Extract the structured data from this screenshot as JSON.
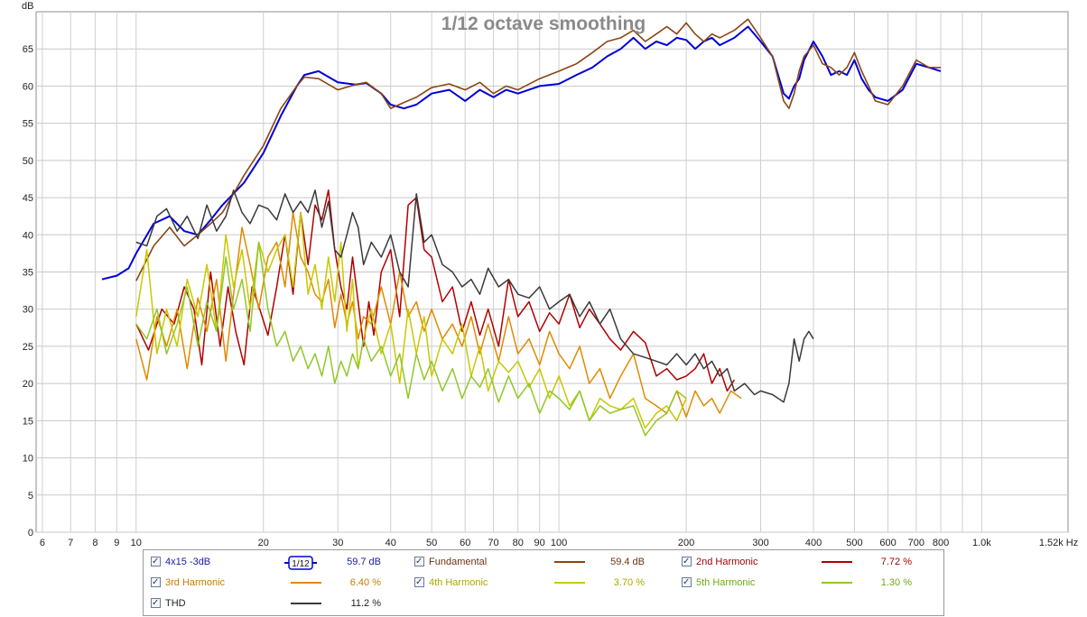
{
  "chart_data": {
    "type": "line",
    "title": "1/12 octave smoothing",
    "ylabel": "dB",
    "xlabel": "",
    "x_unit": "Hz",
    "x_scale": "log",
    "xlim": [
      5.8,
      1600
    ],
    "ylim": [
      0,
      70
    ],
    "grid": true,
    "y_ticks": [
      0,
      5,
      10,
      15,
      20,
      25,
      30,
      35,
      40,
      45,
      50,
      55,
      60,
      65
    ],
    "x_ticks": [
      {
        "v": 6,
        "l": "6"
      },
      {
        "v": 7,
        "l": "7"
      },
      {
        "v": 8,
        "l": "8"
      },
      {
        "v": 9,
        "l": "9"
      },
      {
        "v": 10,
        "l": "10"
      },
      {
        "v": 20,
        "l": "20"
      },
      {
        "v": 30,
        "l": "30"
      },
      {
        "v": 40,
        "l": "40"
      },
      {
        "v": 50,
        "l": "50"
      },
      {
        "v": 60,
        "l": "60"
      },
      {
        "v": 70,
        "l": "70"
      },
      {
        "v": 80,
        "l": "80"
      },
      {
        "v": 90,
        "l": "90"
      },
      {
        "v": 100,
        "l": "100"
      },
      {
        "v": 200,
        "l": "200"
      },
      {
        "v": 300,
        "l": "300"
      },
      {
        "v": 400,
        "l": "400"
      },
      {
        "v": 500,
        "l": "500"
      },
      {
        "v": 600,
        "l": "600"
      },
      {
        "v": 700,
        "l": "700"
      },
      {
        "v": 800,
        "l": "800"
      },
      {
        "v": 1000,
        "l": "1.0k"
      },
      {
        "v": 1520,
        "l": "1.52k Hz"
      }
    ],
    "series": [
      {
        "name": "4x15 -3dB",
        "color": "#0000d8",
        "width": 2,
        "x": [
          8.3,
          9,
          9.6,
          10,
          11,
          12,
          13,
          14,
          15,
          16,
          18,
          20,
          22,
          24,
          25,
          27,
          30,
          33,
          35,
          38,
          40,
          43,
          46,
          50,
          55,
          60,
          65,
          70,
          75,
          80,
          90,
          100,
          110,
          120,
          130,
          140,
          150,
          160,
          170,
          180,
          190,
          200,
          210,
          220,
          230,
          240,
          260,
          280,
          300,
          320,
          340,
          350,
          360,
          370,
          380,
          400,
          420,
          440,
          460,
          480,
          500,
          520,
          540,
          560,
          600,
          650,
          700,
          750,
          800
        ],
        "y": [
          34,
          34.5,
          35.5,
          37.5,
          41.5,
          42.5,
          40.5,
          40,
          42,
          44,
          47,
          51,
          56,
          60,
          61.5,
          62,
          60.5,
          60.2,
          60.4,
          59,
          57.5,
          57,
          57.5,
          59,
          59.5,
          58,
          59.5,
          58.5,
          59.5,
          59,
          60,
          60.3,
          61.5,
          62.5,
          64,
          65,
          66.5,
          65,
          66,
          65.5,
          66.5,
          66.2,
          65,
          66,
          66.5,
          65.5,
          66.5,
          68,
          66,
          64,
          59,
          58.3,
          60,
          61,
          63.5,
          66,
          64,
          61.5,
          62,
          61.5,
          63.5,
          61,
          59.5,
          58.5,
          58,
          59.5,
          63,
          62.5,
          62
        ]
      },
      {
        "name": "Fundamental",
        "color": "#8b4513",
        "width": 1.6,
        "x": [
          10,
          11,
          12,
          13,
          14,
          15,
          16,
          17,
          18,
          20,
          22,
          24,
          25,
          27,
          30,
          33,
          35,
          38,
          40,
          43,
          46,
          50,
          55,
          60,
          65,
          70,
          75,
          80,
          90,
          100,
          110,
          120,
          130,
          140,
          150,
          160,
          170,
          180,
          190,
          200,
          210,
          220,
          230,
          240,
          260,
          280,
          300,
          320,
          340,
          350,
          360,
          370,
          380,
          400,
          420,
          440,
          460,
          480,
          500,
          520,
          540,
          560,
          600,
          650,
          700,
          750,
          800
        ],
        "y": [
          33.8,
          38.5,
          41,
          38.5,
          40,
          41.5,
          43,
          45.5,
          48,
          52,
          57,
          60,
          61.2,
          61,
          59.5,
          60.2,
          60.5,
          59,
          57,
          57.8,
          58.5,
          59.8,
          60.3,
          59.5,
          60.5,
          59,
          60,
          59.5,
          61,
          62,
          63,
          64.5,
          66,
          66.5,
          67.5,
          66,
          67,
          68,
          67,
          68.5,
          67,
          66,
          67,
          66.5,
          67.5,
          69,
          66.5,
          64,
          58,
          57,
          59,
          62,
          64,
          65.5,
          63,
          62.5,
          61.5,
          62.5,
          64.5,
          62,
          60,
          58,
          57.5,
          60,
          63.5,
          62.5,
          62.5
        ]
      },
      {
        "name": "2nd Harmonic",
        "color": "#b00000",
        "width": 1.5,
        "x": [
          10,
          10.7,
          11.5,
          12.3,
          13,
          13.7,
          14.3,
          15,
          15.8,
          16.5,
          17.2,
          18,
          18.8,
          19.6,
          20.5,
          21.5,
          22.5,
          23.5,
          24.5,
          25.5,
          26.5,
          27.5,
          28.5,
          29.5,
          30.5,
          31.5,
          32.5,
          33.5,
          34.5,
          35.5,
          36.5,
          38,
          40,
          42,
          44,
          46,
          48,
          50,
          53,
          56,
          59,
          62,
          65,
          68,
          72,
          76,
          80,
          85,
          90,
          95,
          100,
          106,
          112,
          118,
          125,
          132,
          140,
          150,
          160,
          170,
          180,
          190,
          200,
          210,
          220,
          230,
          240,
          250,
          260
        ],
        "y": [
          28,
          24.5,
          30,
          28,
          33,
          30,
          22.5,
          35,
          25,
          33,
          27,
          22.5,
          33,
          30,
          26.5,
          33,
          40,
          32,
          43,
          36,
          44,
          42,
          46,
          38,
          33,
          30,
          37,
          31,
          25,
          31,
          26.5,
          35,
          38,
          29,
          44,
          45,
          38,
          37,
          31,
          33,
          27,
          31,
          26.5,
          30,
          25,
          34,
          29,
          31,
          27,
          29.5,
          28,
          32,
          27.5,
          30,
          28,
          26,
          24.5,
          27,
          25.5,
          21,
          22,
          20.5,
          21,
          22,
          24,
          20,
          22,
          19,
          20.5
        ]
      },
      {
        "name": "3rd Harmonic",
        "color": "#e08a00",
        "width": 1.5,
        "x": [
          10,
          10.6,
          11.2,
          11.8,
          12.5,
          13.2,
          14,
          14.7,
          15.5,
          16.3,
          17,
          17.8,
          18.6,
          19.5,
          20.5,
          21.5,
          22.5,
          23.5,
          24.5,
          25.5,
          26.5,
          27.5,
          28.5,
          29.5,
          30.5,
          31.5,
          32.5,
          33.5,
          34.5,
          36,
          38,
          40,
          42,
          44,
          46,
          48,
          50,
          53,
          56,
          59,
          62,
          65,
          68,
          72,
          76,
          80,
          85,
          90,
          95,
          100,
          106,
          112,
          118,
          125,
          132,
          140,
          150,
          160,
          170,
          180,
          190,
          200,
          210,
          220,
          230,
          240,
          255,
          270
        ],
        "y": [
          26,
          20.5,
          29,
          25,
          30,
          22,
          31.5,
          27,
          34,
          23,
          32,
          41,
          36,
          30,
          37,
          39,
          33,
          43,
          37,
          35,
          32,
          31,
          34,
          27.5,
          32,
          28,
          31,
          26,
          29,
          28,
          33,
          28,
          35,
          29,
          31,
          27,
          30,
          26,
          28,
          25,
          29,
          24,
          28,
          23,
          29,
          24,
          26,
          22.5,
          27,
          24,
          22,
          25,
          20,
          22,
          18,
          21,
          24,
          18,
          17,
          16,
          19,
          15.5,
          19,
          17,
          18,
          16,
          19,
          18
        ]
      },
      {
        "name": "4th Harmonic",
        "color": "#c8c800",
        "width": 1.5,
        "x": [
          10,
          10.6,
          11.2,
          11.8,
          12.5,
          13.2,
          14,
          14.7,
          15.5,
          16.3,
          17,
          17.8,
          18.6,
          19.5,
          20.5,
          21.5,
          22.5,
          23.5,
          24.5,
          25.5,
          26.5,
          27.5,
          28.5,
          29.5,
          30.5,
          31.5,
          32.5,
          33.5,
          34.5,
          36,
          38,
          40,
          42,
          44,
          46,
          48,
          50,
          53,
          56,
          59,
          62,
          65,
          68,
          72,
          76,
          80,
          85,
          90,
          95,
          100,
          106,
          112,
          118,
          125,
          132,
          140,
          150,
          160,
          170,
          180,
          190,
          200
        ],
        "y": [
          29,
          38,
          24,
          30,
          25,
          34,
          29,
          36,
          27,
          40,
          33,
          38,
          30,
          39,
          35,
          38,
          40,
          33,
          43,
          32,
          36,
          30,
          37,
          31,
          39,
          27,
          34,
          22,
          26,
          30,
          24,
          28,
          20,
          30,
          24,
          29,
          21,
          26,
          24,
          28,
          21,
          25,
          19,
          23,
          21.5,
          23,
          19.5,
          22,
          18,
          21,
          17,
          19,
          15,
          18,
          17,
          16.5,
          18,
          14,
          16,
          17,
          15,
          18
        ]
      },
      {
        "name": "5th Harmonic",
        "color": "#90c828",
        "width": 1.5,
        "x": [
          10,
          10.6,
          11.2,
          11.8,
          12.5,
          13.2,
          14,
          14.7,
          15.5,
          16.3,
          17,
          17.8,
          18.6,
          19.5,
          20.5,
          21.5,
          22.5,
          23.5,
          24.5,
          25.5,
          26.5,
          27.5,
          28.5,
          29.5,
          30.5,
          31.5,
          32.5,
          33.5,
          34.5,
          36,
          38,
          40,
          42,
          44,
          46,
          48,
          50,
          53,
          56,
          59,
          62,
          65,
          68,
          72,
          76,
          80,
          85,
          90,
          95,
          100,
          106,
          112,
          118,
          125,
          132,
          140,
          150,
          160,
          170,
          180,
          190,
          200
        ],
        "y": [
          28,
          26,
          30,
          24,
          28,
          33,
          25,
          31,
          27,
          37,
          30,
          34,
          27,
          39,
          30,
          25,
          27,
          23,
          25,
          22,
          24,
          21,
          25,
          20,
          23,
          21,
          24,
          22,
          26,
          23,
          25,
          21,
          24,
          18,
          24,
          20.5,
          23,
          19,
          22,
          18,
          21,
          19.5,
          22,
          17.5,
          21,
          18,
          20,
          16,
          19,
          18,
          16.5,
          19,
          15,
          17,
          16,
          16.5,
          17,
          13,
          15,
          16,
          19,
          18
        ]
      },
      {
        "name": "THD",
        "color": "#3a3a3a",
        "width": 1.5,
        "x": [
          10,
          10.6,
          11.2,
          11.8,
          12.5,
          13.2,
          14,
          14.7,
          15.5,
          16.3,
          17,
          17.8,
          18.6,
          19.5,
          20.5,
          21.5,
          22.5,
          23.5,
          24.5,
          25.5,
          26.5,
          27.5,
          28.5,
          29.5,
          30.5,
          31.5,
          32.5,
          33.5,
          34.5,
          36,
          38,
          40,
          42,
          44,
          46,
          48,
          50,
          53,
          56,
          59,
          62,
          65,
          68,
          72,
          76,
          80,
          85,
          90,
          95,
          100,
          106,
          112,
          118,
          125,
          132,
          140,
          150,
          160,
          170,
          180,
          190,
          200,
          210,
          220,
          230,
          240,
          250,
          260,
          275,
          290,
          300,
          320,
          330,
          340,
          350,
          360,
          370,
          380,
          390,
          400
        ],
        "y": [
          39,
          38.5,
          42.5,
          43.5,
          40.5,
          42.5,
          39.5,
          44,
          40.5,
          42.5,
          46,
          43,
          41.5,
          44,
          43.5,
          42,
          45.5,
          43,
          44.5,
          43,
          46,
          41,
          44.5,
          38,
          37,
          40,
          43,
          41,
          36,
          39,
          37,
          40,
          35,
          33,
          45.5,
          39,
          40,
          36,
          35,
          33,
          34,
          32,
          35.5,
          33,
          34,
          32,
          31.5,
          33,
          30,
          31,
          32,
          29,
          31,
          28,
          30,
          26,
          24,
          23.5,
          23,
          22.5,
          24,
          22.5,
          24,
          22,
          23,
          21,
          22,
          19,
          20,
          18.5,
          19,
          18.5,
          18,
          17.5,
          20,
          26,
          23,
          26,
          27,
          26
        ]
      }
    ]
  },
  "legend": {
    "smoothing_label": "1/12",
    "rows": [
      {
        "name": "4x15 -3dB",
        "value": "59.7 dB",
        "color": "#0000d8",
        "name_color": "#1a1aa8",
        "value_color": "#1a1aa8"
      },
      {
        "name": "Fundamental",
        "value": "59.4 dB",
        "color": "#8b4513",
        "name_color": "#6b3410",
        "value_color": "#6b3410"
      },
      {
        "name": "2nd Harmonic",
        "value": "7.72 %",
        "color": "#b00000",
        "name_color": "#9a0000",
        "value_color": "#9a0000"
      },
      {
        "name": "3rd Harmonic",
        "value": "6.40 %",
        "color": "#e08a00",
        "name_color": "#c87a00",
        "value_color": "#c87a00"
      },
      {
        "name": "4th Harmonic",
        "value": "3.70 %",
        "color": "#c8c800",
        "name_color": "#a8a800",
        "value_color": "#a8a800"
      },
      {
        "name": "5th Harmonic",
        "value": "1.30 %",
        "color": "#90c828",
        "name_color": "#70a818",
        "value_color": "#70a818"
      },
      {
        "name": "THD",
        "value": "11.2 %",
        "color": "#3a3a3a",
        "name_color": "#222222",
        "value_color": "#222222"
      }
    ]
  }
}
